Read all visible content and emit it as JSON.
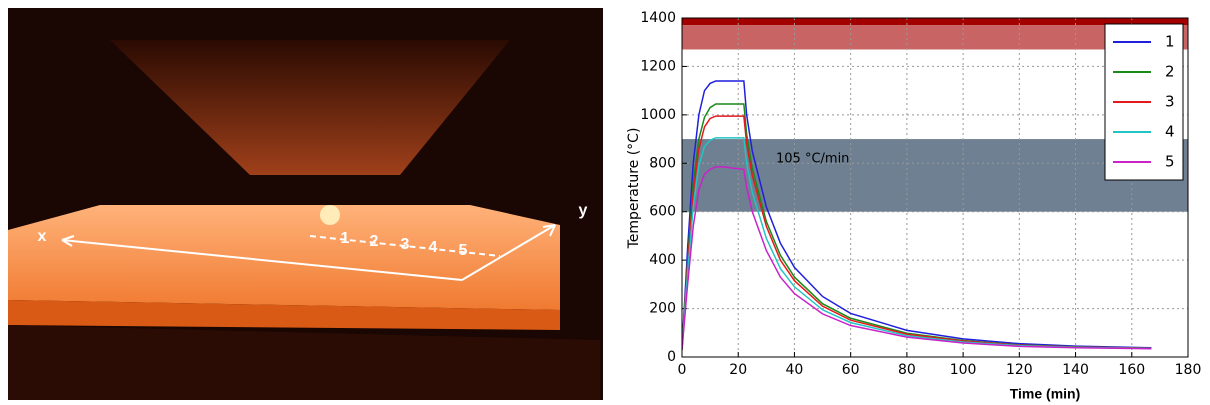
{
  "photo_labels": [
    "x",
    "y",
    "1",
    "2",
    "3",
    "4",
    "5"
  ],
  "chart_data": {
    "type": "line",
    "x_label": "Time (min)",
    "y_label": "Temperature (°C)",
    "annotation": "105 °C/min",
    "xlim": [
      0,
      180
    ],
    "ylim": [
      0,
      1400
    ],
    "xticks": [
      0,
      20,
      40,
      60,
      80,
      100,
      120,
      140,
      160,
      180
    ],
    "yticks": [
      0,
      200,
      400,
      600,
      800,
      1000,
      1200,
      1400
    ],
    "grid": true,
    "legend": "upper right",
    "bands": [
      {
        "y0": 1370,
        "y1": 1400,
        "color": "#a30000"
      },
      {
        "y0": 1270,
        "y1": 1370,
        "color": "#c86464"
      },
      {
        "y0": 600,
        "y1": 900,
        "color": "#6e8091"
      }
    ],
    "x": [
      0,
      2,
      4,
      6,
      8,
      10,
      12,
      15,
      18,
      22,
      23,
      25,
      30,
      35,
      40,
      50,
      60,
      80,
      100,
      120,
      140,
      167
    ],
    "series": [
      {
        "name": "1",
        "color": "#1f1fdd",
        "values": [
          30,
          450,
          800,
          1000,
          1100,
          1130,
          1140,
          1140,
          1140,
          1140,
          1000,
          850,
          620,
          470,
          370,
          250,
          180,
          110,
          75,
          55,
          45,
          38
        ]
      },
      {
        "name": "2",
        "color": "#1a8a1a",
        "values": [
          30,
          400,
          720,
          900,
          990,
          1030,
          1045,
          1045,
          1045,
          1045,
          920,
          780,
          560,
          420,
          330,
          220,
          160,
          98,
          68,
          50,
          42,
          36
        ]
      },
      {
        "name": "3",
        "color": "#e31a1c",
        "values": [
          30,
          380,
          680,
          860,
          950,
          985,
          995,
          995,
          995,
          995,
          880,
          750,
          540,
          400,
          315,
          210,
          152,
          94,
          66,
          49,
          41,
          36
        ]
      },
      {
        "name": "4",
        "color": "#22c4c4",
        "values": [
          30,
          350,
          620,
          790,
          870,
          895,
          905,
          905,
          905,
          905,
          800,
          680,
          490,
          365,
          290,
          195,
          142,
          88,
          62,
          47,
          40,
          35
        ]
      },
      {
        "name": "5",
        "color": "#c922c9",
        "values": [
          30,
          300,
          540,
          690,
          755,
          775,
          785,
          785,
          780,
          775,
          700,
          600,
          440,
          330,
          262,
          178,
          130,
          82,
          58,
          44,
          38,
          34
        ]
      }
    ]
  }
}
